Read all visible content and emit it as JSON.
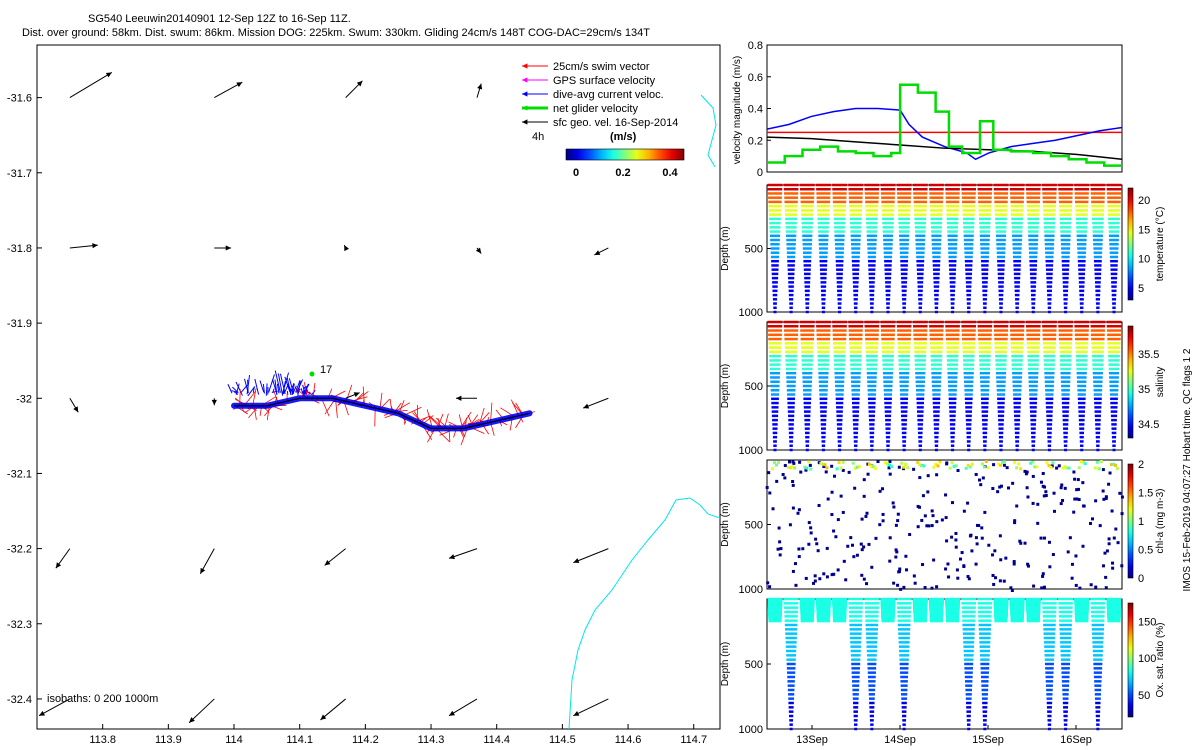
{
  "header": {
    "line1": "SG540 Leeuwin20140901 12-Sep 12Z to 16-Sep 11Z.",
    "line2": "Dist. over ground: 58km. Dist. swum: 86km. Mission DOG: 225km. Swum: 330km. Gliding 24cm/s 148T COG-DAC=29cm/s 134T"
  },
  "side_note": "IMOS 15-Feb-2019 04:07:27 Hobart time. QC flags 1  2",
  "colors": {
    "swim": "#ff0000",
    "gps": "#ff00ff",
    "dac": "#0000ff",
    "net": "#00dd00",
    "geo": "#000000",
    "coast": "#00e5ee"
  },
  "chart_data": [
    {
      "type": "scatter",
      "panel": "map",
      "xlim": [
        113.7,
        114.74
      ],
      "ylim": [
        -32.44,
        -31.53
      ],
      "xticks": [
        "113.8",
        "113.9",
        "114",
        "114.1",
        "114.2",
        "114.3",
        "114.4",
        "114.5",
        "114.6",
        "114.7"
      ],
      "xtick_values": [
        113.8,
        113.9,
        114.0,
        114.1,
        114.2,
        114.3,
        114.4,
        114.5,
        114.6,
        114.7
      ],
      "yticks": [
        "-31.6",
        "-31.7",
        "-31.8",
        "-31.9",
        "-32",
        "-32.1",
        "-32.2",
        "-32.3",
        "-32.4"
      ],
      "ytick_values": [
        -31.6,
        -31.7,
        -31.8,
        -31.9,
        -32.0,
        -32.1,
        -32.2,
        -32.3,
        -32.4
      ],
      "legend": {
        "placement": "top-right",
        "entries": [
          {
            "label": "25cm/s swim vector",
            "color": "#ff0000"
          },
          {
            "label": "GPS surface velocity",
            "color": "#ff00ff"
          },
          {
            "label": "dive-avg current veloc.",
            "color": "#0000ff"
          },
          {
            "label": "net glider velocity",
            "color": "#00dd00"
          },
          {
            "label": "sfc geo. vel. 16-Sep-2014",
            "color": "#000000"
          }
        ],
        "note": "4h"
      },
      "colorbar": {
        "title": "(m/s)",
        "range": [
          0,
          0.5
        ],
        "ticks": [
          "0",
          "0.2",
          "0.4"
        ]
      },
      "isobaths_label": "isobaths: 0   200  1000m",
      "dive_label": "17",
      "track": [
        [
          114.0,
          -32.01
        ],
        [
          114.05,
          -32.01
        ],
        [
          114.1,
          -32.0
        ],
        [
          114.15,
          -32.0
        ],
        [
          114.2,
          -32.01
        ],
        [
          114.25,
          -32.02
        ],
        [
          114.3,
          -32.04
        ],
        [
          114.35,
          -32.04
        ],
        [
          114.4,
          -32.03
        ],
        [
          114.45,
          -32.02
        ]
      ],
      "geo_vectors": [
        {
          "lon": 113.75,
          "lat": -31.6,
          "u": 0.3,
          "v": 0.18
        },
        {
          "lon": 113.97,
          "lat": -31.6,
          "u": 0.2,
          "v": 0.11
        },
        {
          "lon": 114.17,
          "lat": -31.6,
          "u": 0.12,
          "v": 0.12
        },
        {
          "lon": 114.37,
          "lat": -31.6,
          "u": 0.03,
          "v": 0.1
        },
        {
          "lon": 113.75,
          "lat": -31.8,
          "u": 0.2,
          "v": 0.02
        },
        {
          "lon": 113.97,
          "lat": -31.8,
          "u": 0.12,
          "v": 0.0
        },
        {
          "lon": 114.17,
          "lat": -31.8,
          "u": -0.01,
          "v": 0.02
        },
        {
          "lon": 114.37,
          "lat": -31.8,
          "u": 0.03,
          "v": -0.04
        },
        {
          "lon": 114.57,
          "lat": -31.8,
          "u": -0.1,
          "v": -0.05
        },
        {
          "lon": 113.75,
          "lat": -32.0,
          "u": 0.06,
          "v": -0.1
        },
        {
          "lon": 113.97,
          "lat": -32.0,
          "u": 0.0,
          "v": -0.05
        },
        {
          "lon": 114.17,
          "lat": -32.0,
          "u": 0.1,
          "v": 0.04
        },
        {
          "lon": 114.37,
          "lat": -32.0,
          "u": -0.15,
          "v": 0.0
        },
        {
          "lon": 114.57,
          "lat": -32.0,
          "u": -0.18,
          "v": -0.07
        },
        {
          "lon": 113.75,
          "lat": -32.2,
          "u": -0.1,
          "v": -0.14
        },
        {
          "lon": 113.97,
          "lat": -32.2,
          "u": -0.1,
          "v": -0.18
        },
        {
          "lon": 114.17,
          "lat": -32.2,
          "u": -0.15,
          "v": -0.12
        },
        {
          "lon": 114.37,
          "lat": -32.2,
          "u": -0.2,
          "v": -0.07
        },
        {
          "lon": 114.57,
          "lat": -32.2,
          "u": -0.25,
          "v": -0.1
        },
        {
          "lon": 113.75,
          "lat": -32.4,
          "u": -0.22,
          "v": -0.12
        },
        {
          "lon": 113.97,
          "lat": -32.4,
          "u": -0.18,
          "v": -0.17
        },
        {
          "lon": 114.17,
          "lat": -32.4,
          "u": -0.18,
          "v": -0.15
        },
        {
          "lon": 114.37,
          "lat": -32.4,
          "u": -0.2,
          "v": -0.12
        },
        {
          "lon": 114.57,
          "lat": -32.4,
          "u": -0.25,
          "v": -0.12
        }
      ]
    },
    {
      "type": "line",
      "panel": "velocity",
      "ylabel": "velocity magnitude (m/s)",
      "ylim": [
        0,
        0.8
      ],
      "yticks": [
        "0",
        "0.2",
        "0.4",
        "0.6",
        "0.8"
      ],
      "xlim": [
        12.5,
        16.5
      ],
      "series": [
        {
          "color": "#ff0000",
          "x": [
            12.5,
            16.5
          ],
          "y": [
            0.25,
            0.25
          ]
        },
        {
          "color": "#0000ff",
          "x": [
            12.5,
            12.75,
            13.0,
            13.25,
            13.5,
            13.75,
            14.0,
            14.1,
            14.25,
            14.5,
            14.75,
            14.85,
            15.0,
            15.25,
            15.5,
            15.75,
            16.0,
            16.25,
            16.5
          ],
          "y": [
            0.27,
            0.3,
            0.35,
            0.38,
            0.4,
            0.4,
            0.39,
            0.3,
            0.22,
            0.16,
            0.12,
            0.08,
            0.12,
            0.16,
            0.18,
            0.2,
            0.23,
            0.26,
            0.28
          ]
        },
        {
          "color": "#000000",
          "x": [
            12.5,
            13.0,
            13.5,
            14.0,
            14.5,
            15.0,
            15.5,
            16.0,
            16.5
          ],
          "y": [
            0.22,
            0.21,
            0.19,
            0.17,
            0.15,
            0.14,
            0.13,
            0.11,
            0.08
          ]
        },
        {
          "color": "#00dd00",
          "x": [
            12.5,
            12.7,
            12.7,
            12.9,
            12.9,
            13.1,
            13.1,
            13.3,
            13.3,
            13.5,
            13.5,
            13.7,
            13.7,
            13.9,
            13.9,
            14.0,
            14.0,
            14.2,
            14.2,
            14.4,
            14.4,
            14.55,
            14.55,
            14.7,
            14.7,
            14.9,
            14.9,
            15.05,
            15.05,
            15.25,
            15.25,
            15.5,
            15.5,
            15.7,
            15.7,
            15.9,
            15.9,
            16.1,
            16.1,
            16.3,
            16.3,
            16.5
          ],
          "y": [
            0.06,
            0.06,
            0.1,
            0.1,
            0.14,
            0.14,
            0.16,
            0.16,
            0.13,
            0.13,
            0.12,
            0.12,
            0.1,
            0.1,
            0.12,
            0.12,
            0.55,
            0.55,
            0.5,
            0.5,
            0.38,
            0.38,
            0.16,
            0.16,
            0.12,
            0.12,
            0.32,
            0.32,
            0.14,
            0.14,
            0.13,
            0.13,
            0.12,
            0.12,
            0.1,
            0.1,
            0.08,
            0.08,
            0.06,
            0.06,
            0.04,
            0.04
          ]
        }
      ]
    },
    {
      "type": "scatter",
      "panel": "temperature",
      "ylabel": "Depth (m)",
      "ylim": [
        1000,
        0
      ],
      "yticks": [
        "500",
        "1000"
      ],
      "colorbar_label": "temperature (°C)",
      "colorbar_ticks": [
        "5",
        "10",
        "15",
        "20"
      ],
      "value_range": [
        3,
        22
      ]
    },
    {
      "type": "scatter",
      "panel": "salinity",
      "ylabel": "Depth (m)",
      "ylim": [
        1000,
        0
      ],
      "yticks": [
        "500",
        "1000"
      ],
      "colorbar_label": "salinity",
      "colorbar_ticks": [
        "34.5",
        "35",
        "35.5"
      ],
      "value_range": [
        34.3,
        35.9
      ]
    },
    {
      "type": "scatter",
      "panel": "chla",
      "ylabel": "Depth (m)",
      "ylim": [
        1000,
        0
      ],
      "yticks": [
        "500",
        "1000"
      ],
      "colorbar_label": "chl-a (mg m-3)",
      "colorbar_ticks": [
        "0",
        "0.5",
        "1",
        "1.5",
        "2"
      ],
      "value_range": [
        0,
        2
      ]
    },
    {
      "type": "scatter",
      "panel": "oxygen",
      "ylabel": "Depth (m)",
      "ylim": [
        1000,
        0
      ],
      "yticks": [
        "500",
        "1000"
      ],
      "colorbar_label": "Ox. sat. ratio (%)",
      "colorbar_ticks": [
        "50",
        "100",
        "150"
      ],
      "value_range": [
        20,
        175
      ],
      "xticks": [
        "13Sep",
        "14Sep",
        "15Sep",
        "16Sep"
      ]
    }
  ]
}
